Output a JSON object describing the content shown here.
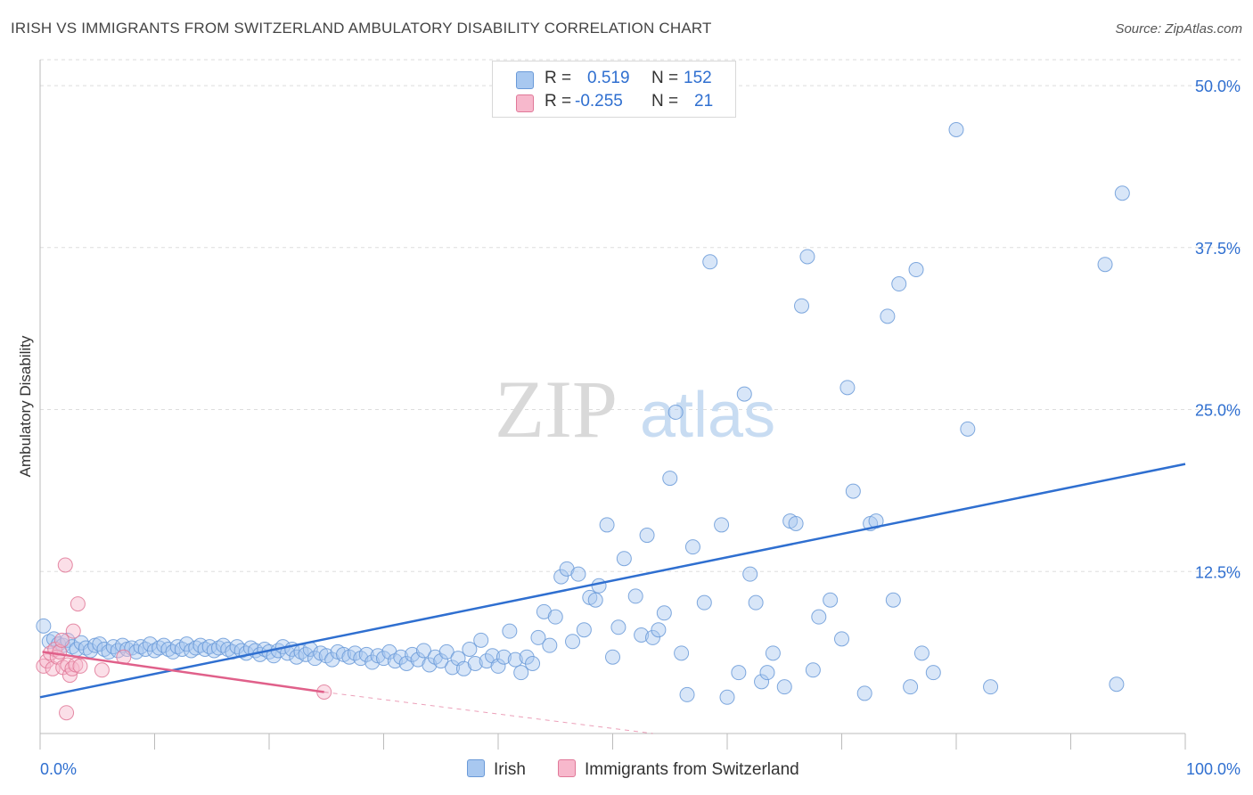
{
  "header": {
    "title": "IRISH VS IMMIGRANTS FROM SWITZERLAND AMBULATORY DISABILITY CORRELATION CHART",
    "source": "Source: ZipAtlas.com"
  },
  "watermark": {
    "zip": "ZIP",
    "atlas": "atlas"
  },
  "legend": {
    "rows": [
      {
        "r_label": "R =",
        "r_value": "0.519",
        "n_label": "N =",
        "n_value": "152"
      },
      {
        "r_label": "R =",
        "r_value": "-0.255",
        "n_label": "N =",
        "n_value": "21"
      }
    ]
  },
  "bottom_legend": {
    "irish": "Irish",
    "swiss": "Immigrants from Switzerland"
  },
  "colors": {
    "irish_fill": "#a8c8f0",
    "irish_stroke": "#6a9ad8",
    "irish_line": "#2f6fd0",
    "swiss_fill": "#f7b8cc",
    "swiss_stroke": "#e07898",
    "swiss_line": "#e0608a",
    "axis_label": "#2f6fd0",
    "grid": "#dddddd"
  },
  "chart_data": {
    "type": "scatter",
    "title": "IRISH VS IMMIGRANTS FROM SWITZERLAND AMBULATORY DISABILITY CORRELATION CHART",
    "ylabel": "Ambulatory Disability",
    "xlabel": "",
    "xlim": [
      0,
      100
    ],
    "ylim": [
      0,
      52
    ],
    "x_tick_labels": [
      "0.0%",
      "100.0%"
    ],
    "y_ticks": [
      12.5,
      25.0,
      37.5,
      50.0
    ],
    "y_tick_labels": [
      "12.5%",
      "25.0%",
      "37.5%",
      "50.0%"
    ],
    "grid": "horizontal dashed",
    "series": [
      {
        "name": "Irish",
        "r": 0.519,
        "n": 152,
        "trend": {
          "x": [
            0,
            100
          ],
          "y": [
            2.8,
            20.8
          ]
        },
        "points": [
          [
            0.3,
            8.3
          ],
          [
            0.8,
            7.1
          ],
          [
            1.2,
            7.3
          ],
          [
            1.6,
            6.9
          ],
          [
            2.0,
            6.8
          ],
          [
            2.4,
            7.2
          ],
          [
            2.8,
            6.7
          ],
          [
            3.2,
            6.5
          ],
          [
            3.6,
            7.0
          ],
          [
            4.0,
            6.6
          ],
          [
            4.4,
            6.4
          ],
          [
            4.8,
            6.8
          ],
          [
            5.2,
            6.9
          ],
          [
            5.6,
            6.5
          ],
          [
            6.0,
            6.3
          ],
          [
            6.4,
            6.7
          ],
          [
            6.8,
            6.4
          ],
          [
            7.2,
            6.8
          ],
          [
            7.6,
            6.5
          ],
          [
            8.0,
            6.6
          ],
          [
            8.4,
            6.3
          ],
          [
            8.8,
            6.7
          ],
          [
            9.2,
            6.5
          ],
          [
            9.6,
            6.9
          ],
          [
            10.0,
            6.4
          ],
          [
            10.4,
            6.6
          ],
          [
            10.8,
            6.8
          ],
          [
            11.2,
            6.5
          ],
          [
            11.6,
            6.3
          ],
          [
            12.0,
            6.7
          ],
          [
            12.4,
            6.5
          ],
          [
            12.8,
            6.9
          ],
          [
            13.2,
            6.4
          ],
          [
            13.6,
            6.6
          ],
          [
            14.0,
            6.8
          ],
          [
            14.4,
            6.5
          ],
          [
            14.8,
            6.7
          ],
          [
            15.2,
            6.4
          ],
          [
            15.6,
            6.6
          ],
          [
            16.0,
            6.8
          ],
          [
            16.4,
            6.5
          ],
          [
            16.8,
            6.3
          ],
          [
            17.2,
            6.7
          ],
          [
            17.6,
            6.4
          ],
          [
            18.0,
            6.2
          ],
          [
            18.4,
            6.6
          ],
          [
            18.8,
            6.4
          ],
          [
            19.2,
            6.1
          ],
          [
            19.6,
            6.5
          ],
          [
            20.0,
            6.3
          ],
          [
            20.4,
            6.0
          ],
          [
            20.8,
            6.4
          ],
          [
            21.2,
            6.7
          ],
          [
            21.6,
            6.2
          ],
          [
            22.0,
            6.5
          ],
          [
            22.4,
            5.9
          ],
          [
            22.8,
            6.3
          ],
          [
            23.2,
            6.1
          ],
          [
            23.6,
            6.5
          ],
          [
            24.0,
            5.8
          ],
          [
            24.5,
            6.2
          ],
          [
            25.0,
            6.0
          ],
          [
            25.5,
            5.7
          ],
          [
            26.0,
            6.3
          ],
          [
            26.5,
            6.1
          ],
          [
            27.0,
            5.9
          ],
          [
            27.5,
            6.2
          ],
          [
            28.0,
            5.8
          ],
          [
            28.5,
            6.1
          ],
          [
            29.0,
            5.5
          ],
          [
            29.5,
            6.0
          ],
          [
            30.0,
            5.8
          ],
          [
            30.5,
            6.3
          ],
          [
            31.0,
            5.6
          ],
          [
            31.5,
            5.9
          ],
          [
            32.0,
            5.4
          ],
          [
            32.5,
            6.1
          ],
          [
            33.0,
            5.7
          ],
          [
            33.5,
            6.4
          ],
          [
            34.0,
            5.3
          ],
          [
            34.5,
            5.9
          ],
          [
            35.0,
            5.6
          ],
          [
            35.5,
            6.3
          ],
          [
            36.0,
            5.1
          ],
          [
            36.5,
            5.8
          ],
          [
            37.0,
            5.0
          ],
          [
            37.5,
            6.5
          ],
          [
            38.0,
            5.4
          ],
          [
            38.5,
            7.2
          ],
          [
            39.0,
            5.6
          ],
          [
            39.5,
            6.0
          ],
          [
            40.0,
            5.2
          ],
          [
            40.5,
            5.9
          ],
          [
            41.0,
            7.9
          ],
          [
            41.5,
            5.7
          ],
          [
            42.0,
            4.7
          ],
          [
            42.5,
            5.9
          ],
          [
            43.0,
            5.4
          ],
          [
            43.5,
            7.4
          ],
          [
            44.0,
            9.4
          ],
          [
            44.5,
            6.8
          ],
          [
            45.0,
            9.0
          ],
          [
            45.5,
            12.1
          ],
          [
            46.0,
            12.7
          ],
          [
            46.5,
            7.1
          ],
          [
            47.0,
            12.3
          ],
          [
            47.5,
            8.0
          ],
          [
            48.0,
            10.5
          ],
          [
            48.5,
            10.3
          ],
          [
            48.8,
            11.4
          ],
          [
            49.5,
            16.1
          ],
          [
            50.0,
            5.9
          ],
          [
            50.5,
            8.2
          ],
          [
            51.0,
            13.5
          ],
          [
            52.0,
            10.6
          ],
          [
            52.5,
            7.6
          ],
          [
            53.0,
            15.3
          ],
          [
            53.5,
            7.4
          ],
          [
            54.0,
            8.0
          ],
          [
            54.5,
            9.3
          ],
          [
            55.0,
            19.7
          ],
          [
            55.5,
            24.8
          ],
          [
            56.0,
            6.2
          ],
          [
            56.5,
            3.0
          ],
          [
            57.0,
            14.4
          ],
          [
            58.0,
            10.1
          ],
          [
            58.5,
            36.4
          ],
          [
            59.5,
            16.1
          ],
          [
            60.0,
            2.8
          ],
          [
            61.0,
            4.7
          ],
          [
            61.5,
            26.2
          ],
          [
            62.0,
            12.3
          ],
          [
            62.5,
            10.1
          ],
          [
            63.0,
            4.0
          ],
          [
            63.5,
            4.7
          ],
          [
            64.0,
            6.2
          ],
          [
            65.0,
            3.6
          ],
          [
            65.5,
            16.4
          ],
          [
            66.0,
            16.2
          ],
          [
            66.5,
            33.0
          ],
          [
            67.0,
            36.8
          ],
          [
            67.5,
            4.9
          ],
          [
            68.0,
            9.0
          ],
          [
            69.0,
            10.3
          ],
          [
            70.0,
            7.3
          ],
          [
            70.5,
            26.7
          ],
          [
            71.0,
            18.7
          ],
          [
            72.0,
            3.1
          ],
          [
            72.5,
            16.2
          ],
          [
            73.0,
            16.4
          ],
          [
            74.0,
            32.2
          ],
          [
            74.5,
            10.3
          ],
          [
            75.0,
            34.7
          ],
          [
            76.0,
            3.6
          ],
          [
            76.5,
            35.8
          ],
          [
            77.0,
            6.2
          ],
          [
            78.0,
            4.7
          ],
          [
            80.0,
            46.6
          ],
          [
            81.0,
            23.5
          ],
          [
            83.0,
            3.6
          ],
          [
            93.0,
            36.2
          ],
          [
            94.0,
            3.8
          ],
          [
            94.5,
            41.7
          ]
        ]
      },
      {
        "name": "Immigrants from Switzerland",
        "r": -0.255,
        "n": 21,
        "trend": {
          "x": [
            0.2,
            24.8
          ],
          "y": [
            6.3,
            3.2
          ]
        },
        "trend_dashed_extension": {
          "x": [
            24.8,
            53.5
          ],
          "y": [
            3.2,
            0.0
          ]
        },
        "points": [
          [
            0.3,
            5.2
          ],
          [
            0.6,
            5.6
          ],
          [
            0.9,
            6.2
          ],
          [
            1.1,
            5.0
          ],
          [
            1.3,
            6.5
          ],
          [
            1.5,
            5.9
          ],
          [
            1.7,
            6.3
          ],
          [
            1.9,
            7.2
          ],
          [
            2.0,
            5.1
          ],
          [
            2.2,
            13.0
          ],
          [
            2.3,
            1.6
          ],
          [
            2.4,
            5.3
          ],
          [
            2.6,
            4.5
          ],
          [
            2.8,
            5.0
          ],
          [
            2.9,
            7.9
          ],
          [
            3.1,
            5.3
          ],
          [
            3.3,
            10.0
          ],
          [
            3.5,
            5.2
          ],
          [
            5.4,
            4.9
          ],
          [
            7.3,
            5.9
          ],
          [
            24.8,
            3.2
          ]
        ]
      }
    ]
  }
}
